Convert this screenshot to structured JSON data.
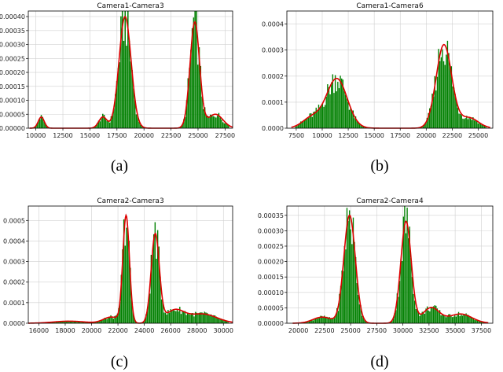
{
  "chart_data": [
    {
      "type": "bar",
      "title": "Camera1-Camera3",
      "caption": "(a)",
      "xlim": [
        9300,
        28200
      ],
      "ylim": [
        0,
        0.00042
      ],
      "x_ticks": [
        10000,
        12500,
        15000,
        17500,
        20000,
        22500,
        25000,
        27500
      ],
      "x_tick_labels": [
        "10000",
        "12500",
        "15000",
        "17500",
        "20000",
        "22500",
        "25000",
        "27500"
      ],
      "y_ticks": [
        0,
        5e-05,
        0.0001,
        0.00015,
        0.0002,
        0.00025,
        0.0003,
        0.00035,
        0.0004
      ],
      "y_tick_labels": [
        "0.00000",
        "0.00005",
        "0.00010",
        "0.00015",
        "0.00020",
        "0.00025",
        "0.00030",
        "0.00035",
        "0.00040"
      ],
      "grid": true,
      "hist_range": [
        9800,
        27900
      ],
      "bin_count": 140,
      "components": [
        {
          "mu": 10500,
          "sigma": 280,
          "amp": 4e-05
        },
        {
          "mu": 16200,
          "sigma": 380,
          "amp": 4e-05
        },
        {
          "mu": 18250,
          "sigma": 560,
          "amp": 0.0004
        },
        {
          "mu": 24700,
          "sigma": 440,
          "amp": 0.00038
        },
        {
          "mu": 26600,
          "sigma": 700,
          "amp": 5e-05
        }
      ],
      "colors": {
        "bars": "#008000",
        "curve": "#dd0000",
        "grid": "#d0d0d0"
      }
    },
    {
      "type": "bar",
      "title": "Camera1-Camera6",
      "caption": "(b)",
      "xlim": [
        6600,
        26400
      ],
      "ylim": [
        0,
        0.00045
      ],
      "x_ticks": [
        7500,
        10000,
        12500,
        15000,
        17500,
        20000,
        22500,
        25000
      ],
      "x_tick_labels": [
        "7500",
        "10000",
        "12500",
        "15000",
        "17500",
        "20000",
        "22500",
        "25000"
      ],
      "y_ticks": [
        0,
        0.0001,
        0.0002,
        0.0003,
        0.0004
      ],
      "y_tick_labels": [
        "0.0000",
        "0.0001",
        "0.0002",
        "0.0003",
        "0.0004"
      ],
      "grid": true,
      "hist_range": [
        7400,
        25800
      ],
      "bin_count": 150,
      "components": [
        {
          "mu": 9000,
          "sigma": 900,
          "amp": 4e-05
        },
        {
          "mu": 11400,
          "sigma": 1000,
          "amp": 0.00019
        },
        {
          "mu": 21700,
          "sigma": 750,
          "amp": 0.00032
        },
        {
          "mu": 24100,
          "sigma": 900,
          "amp": 4e-05
        }
      ],
      "colors": {
        "bars": "#008000",
        "curve": "#dd0000",
        "grid": "#d0d0d0"
      }
    },
    {
      "type": "bar",
      "title": "Camera2-Camera3",
      "caption": "(c)",
      "xlim": [
        15200,
        30700
      ],
      "ylim": [
        0,
        0.00057
      ],
      "x_ticks": [
        16000,
        18000,
        20000,
        22000,
        24000,
        26000,
        28000,
        30000
      ],
      "x_tick_labels": [
        "16000",
        "18000",
        "20000",
        "22000",
        "24000",
        "26000",
        "28000",
        "30000"
      ],
      "y_ticks": [
        0,
        0.0001,
        0.0002,
        0.0003,
        0.0004,
        0.0005
      ],
      "y_tick_labels": [
        "0.0000",
        "0.0001",
        "0.0002",
        "0.0003",
        "0.0004",
        "0.0005"
      ],
      "grid": true,
      "hist_range": [
        15600,
        30400
      ],
      "bin_count": 150,
      "components": [
        {
          "mu": 18300,
          "sigma": 1200,
          "amp": 1e-05
        },
        {
          "mu": 21500,
          "sigma": 600,
          "amp": 3e-05
        },
        {
          "mu": 22620,
          "sigma": 250,
          "amp": 0.00052
        },
        {
          "mu": 24830,
          "sigma": 310,
          "amp": 0.00043
        },
        {
          "mu": 26300,
          "sigma": 700,
          "amp": 6e-05
        },
        {
          "mu": 28400,
          "sigma": 1100,
          "amp": 4.5e-05
        }
      ],
      "colors": {
        "bars": "#008000",
        "curve": "#dd0000",
        "grid": "#d0d0d0"
      }
    },
    {
      "type": "bar",
      "title": "Camera2-Camera4",
      "caption": "(d)",
      "xlim": [
        18900,
        38600
      ],
      "ylim": [
        0,
        0.00038
      ],
      "x_ticks": [
        20000,
        22500,
        25000,
        27500,
        30000,
        32500,
        35000,
        37500
      ],
      "x_tick_labels": [
        "20000",
        "22500",
        "25000",
        "27500",
        "30000",
        "32500",
        "35000",
        "37500"
      ],
      "y_ticks": [
        0,
        5e-05,
        0.0001,
        0.00015,
        0.0002,
        0.00025,
        0.0003,
        0.00035
      ],
      "y_tick_labels": [
        "0.00000",
        "0.00005",
        "0.00010",
        "0.00015",
        "0.00020",
        "0.00025",
        "0.00030",
        "0.00035"
      ],
      "grid": true,
      "hist_range": [
        19800,
        37800
      ],
      "bin_count": 150,
      "components": [
        {
          "mu": 22300,
          "sigma": 900,
          "amp": 2e-05
        },
        {
          "mu": 24900,
          "sigma": 550,
          "amp": 0.00035
        },
        {
          "mu": 30300,
          "sigma": 500,
          "amp": 0.00033
        },
        {
          "mu": 32700,
          "sigma": 800,
          "amp": 5e-05
        },
        {
          "mu": 35500,
          "sigma": 1100,
          "amp": 3e-05
        }
      ],
      "colors": {
        "bars": "#008000",
        "curve": "#dd0000",
        "grid": "#d0d0d0"
      }
    }
  ]
}
